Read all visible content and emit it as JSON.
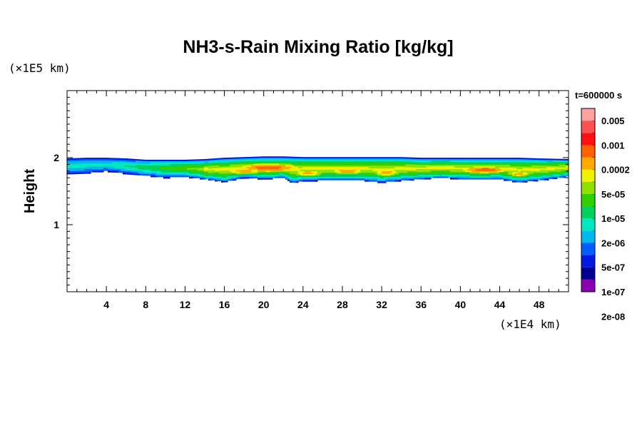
{
  "chart_data": {
    "type": "heatmap",
    "title": "NH3-s-Rain Mixing Ratio [kg/kg]",
    "ylabel": "Height",
    "x_unit_label": "(×1E4 km)",
    "y_unit_label": "(×1E5 km)",
    "time_label": "t=600000 s",
    "xlim": [
      0,
      51
    ],
    "ylim": [
      0,
      3
    ],
    "x_ticks": [
      4,
      8,
      12,
      16,
      20,
      24,
      28,
      32,
      36,
      40,
      44,
      48
    ],
    "x_tick_labels": [
      "4",
      "8",
      "12",
      "16",
      "20",
      "24",
      "28",
      "32",
      "36",
      "40",
      "44",
      "48"
    ],
    "y_ticks": [
      1,
      2
    ],
    "y_tick_labels": [
      "1",
      "2"
    ],
    "colorbar": {
      "labels": [
        "0.005",
        "0.001",
        "0.0002",
        "5e-05",
        "1e-05",
        "2e-06",
        "5e-07",
        "1e-07",
        "2e-08"
      ],
      "colors": [
        "#8a00b0",
        "#000090",
        "#0018e0",
        "#0060ff",
        "#00b8f0",
        "#00e8c0",
        "#00d060",
        "#30d000",
        "#90e000",
        "#f0f000",
        "#ffa800",
        "#ff6000",
        "#ff1010",
        "#ff5050",
        "#ffa0a0"
      ]
    },
    "field": {
      "band_top": [
        [
          0,
          1.99
        ],
        [
          2,
          2.0
        ],
        [
          4,
          2.0
        ],
        [
          6,
          1.99
        ],
        [
          8,
          1.97
        ],
        [
          10,
          1.97
        ],
        [
          12,
          1.97
        ],
        [
          14,
          1.98
        ],
        [
          16,
          2.0
        ],
        [
          18,
          2.01
        ],
        [
          20,
          2.02
        ],
        [
          22,
          2.02
        ],
        [
          24,
          2.01
        ],
        [
          26,
          2.01
        ],
        [
          28,
          2.01
        ],
        [
          30,
          2.01
        ],
        [
          32,
          2.01
        ],
        [
          34,
          2.01
        ],
        [
          36,
          2.0
        ],
        [
          38,
          2.0
        ],
        [
          40,
          2.0
        ],
        [
          42,
          2.0
        ],
        [
          44,
          2.0
        ],
        [
          46,
          2.0
        ],
        [
          48,
          1.99
        ],
        [
          51,
          1.98
        ]
      ],
      "band_bottom": [
        [
          0,
          1.75
        ],
        [
          2,
          1.77
        ],
        [
          4,
          1.8
        ],
        [
          6,
          1.76
        ],
        [
          8,
          1.73
        ],
        [
          10,
          1.7
        ],
        [
          12,
          1.71
        ],
        [
          14,
          1.68
        ],
        [
          16,
          1.64
        ],
        [
          18,
          1.7
        ],
        [
          20,
          1.68
        ],
        [
          22,
          1.7
        ],
        [
          23,
          1.62
        ],
        [
          24,
          1.65
        ],
        [
          26,
          1.66
        ],
        [
          28,
          1.66
        ],
        [
          30,
          1.66
        ],
        [
          32,
          1.63
        ],
        [
          34,
          1.66
        ],
        [
          36,
          1.68
        ],
        [
          38,
          1.7
        ],
        [
          40,
          1.68
        ],
        [
          42,
          1.67
        ],
        [
          44,
          1.68
        ],
        [
          46,
          1.63
        ],
        [
          48,
          1.66
        ],
        [
          51,
          1.72
        ]
      ],
      "peaks": [
        {
          "x": 20.5,
          "y": 1.85,
          "dx": 3.2,
          "dy": 0.06,
          "level": 11
        },
        {
          "x": 18.0,
          "y": 1.8,
          "dx": 2.0,
          "dy": 0.05,
          "level": 10
        },
        {
          "x": 24.5,
          "y": 1.77,
          "dx": 1.5,
          "dy": 0.05,
          "level": 10
        },
        {
          "x": 28.5,
          "y": 1.8,
          "dx": 2.0,
          "dy": 0.05,
          "level": 10
        },
        {
          "x": 32.5,
          "y": 1.78,
          "dx": 1.3,
          "dy": 0.06,
          "level": 10
        },
        {
          "x": 42.5,
          "y": 1.82,
          "dx": 2.5,
          "dy": 0.05,
          "level": 11
        },
        {
          "x": 46.0,
          "y": 1.76,
          "dx": 1.2,
          "dy": 0.04,
          "level": 10
        },
        {
          "x": 38.5,
          "y": 1.84,
          "dx": 2.0,
          "dy": 0.04,
          "level": 9
        }
      ]
    }
  }
}
